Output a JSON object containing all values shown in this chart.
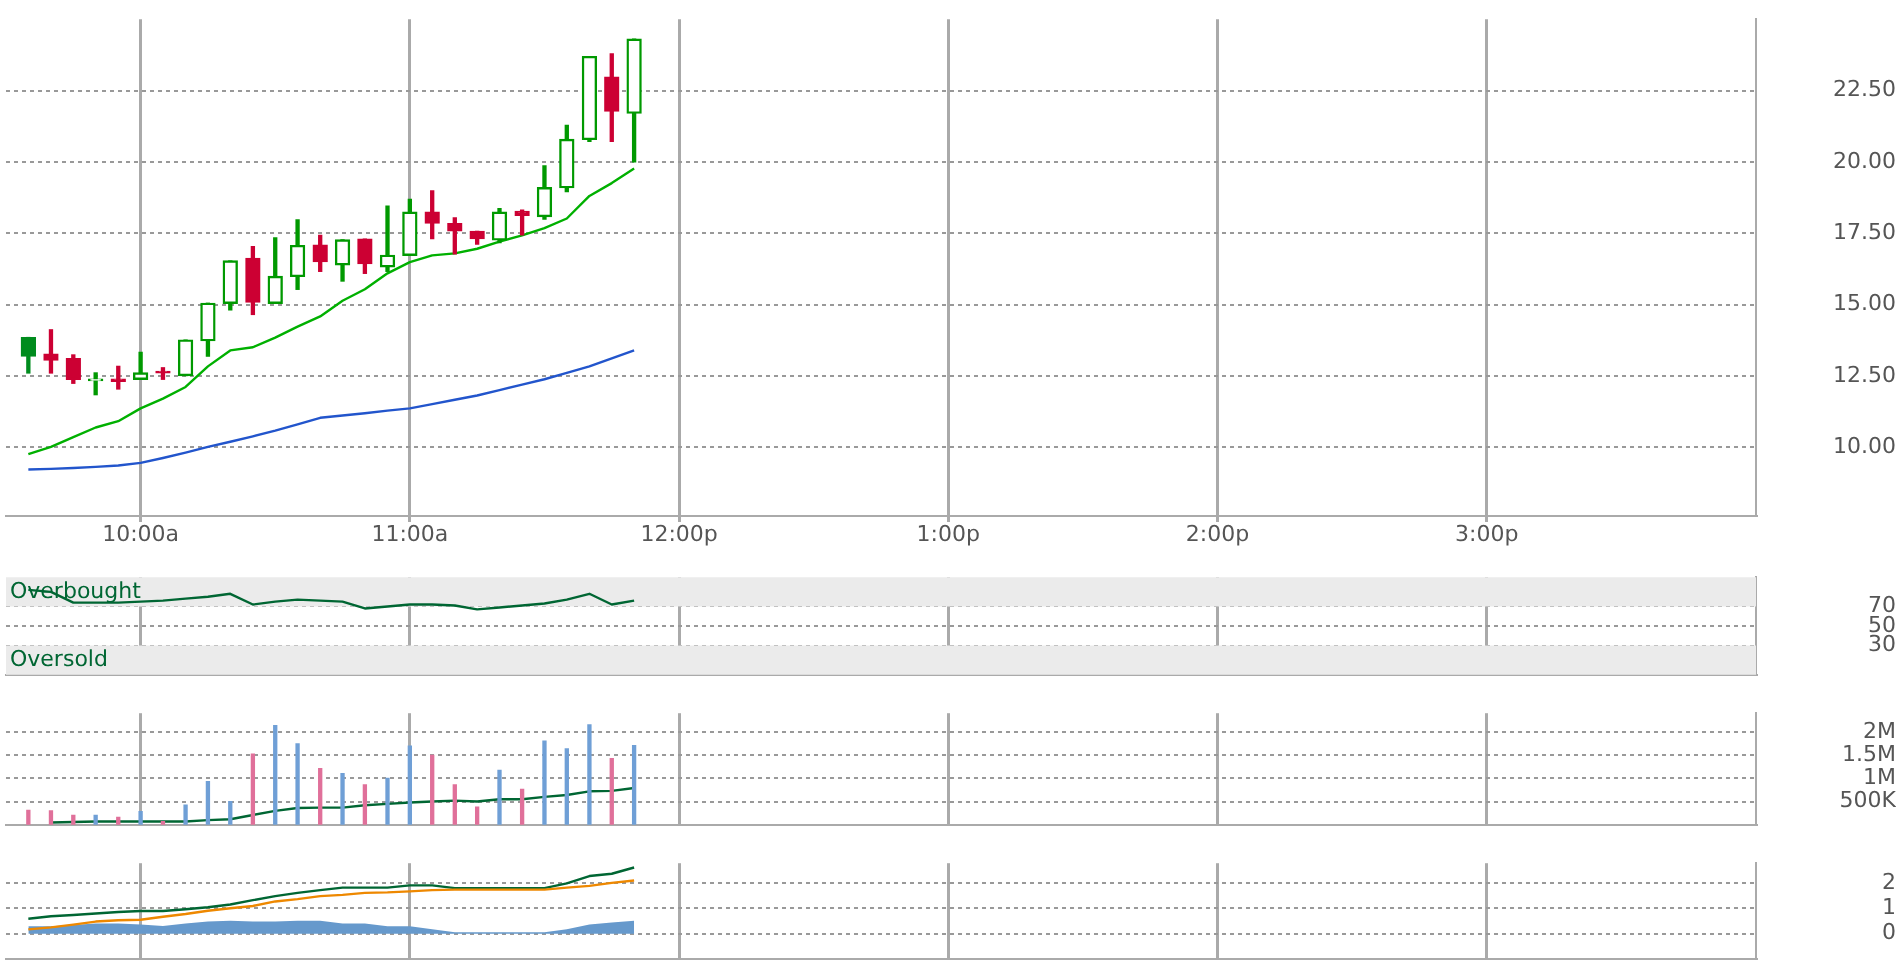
{
  "chart_data": [
    {
      "type": "candlestick",
      "x": [
        9.583,
        9.667,
        9.75,
        9.833,
        9.917,
        10,
        10.083,
        10.167,
        10.25,
        10.333,
        10.417,
        10.5,
        10.583,
        10.667,
        10.75,
        10.833,
        10.917,
        11,
        11.083,
        11.167,
        11.25,
        11.333,
        11.417,
        11.5,
        11.583,
        11.667,
        11.75,
        11.833
      ],
      "ohlc": [
        [
          13.85,
          13.85,
          12.61,
          13.2
        ],
        [
          13.27,
          14.12,
          12.61,
          13.06
        ],
        [
          13.11,
          13.24,
          12.25,
          12.39
        ],
        [
          12.34,
          12.61,
          11.85,
          12.39
        ],
        [
          12.39,
          12.84,
          12.05,
          12.32
        ],
        [
          12.39,
          13.33,
          12.39,
          12.61
        ],
        [
          12.66,
          12.79,
          12.39,
          12.61
        ],
        [
          12.52,
          13.76,
          12.52,
          13.76
        ],
        [
          13.74,
          15.05,
          13.2,
          15.05
        ],
        [
          15.05,
          16.53,
          14.82,
          16.53
        ],
        [
          16.62,
          17.03,
          14.66,
          15.09
        ],
        [
          15.05,
          17.34,
          15.05,
          15.99
        ],
        [
          15.99,
          17.97,
          15.54,
          17.07
        ],
        [
          17.09,
          17.43,
          16.17,
          16.51
        ],
        [
          16.4,
          17.27,
          15.83,
          17.27
        ],
        [
          17.3,
          17.3,
          16.1,
          16.44
        ],
        [
          16.33,
          18.45,
          16.17,
          16.73
        ],
        [
          16.73,
          18.69,
          16.73,
          18.24
        ],
        [
          18.24,
          18.99,
          17.32,
          17.86
        ],
        [
          17.84,
          18.04,
          16.78,
          17.59
        ],
        [
          17.57,
          17.57,
          17.12,
          17.32
        ],
        [
          17.27,
          18.36,
          17.18,
          18.24
        ],
        [
          18.27,
          18.31,
          17.45,
          18.13
        ],
        [
          18.09,
          19.86,
          18,
          19.1
        ],
        [
          19.1,
          21.28,
          18.96,
          20.79
        ],
        [
          20.79,
          23.69,
          20.72,
          23.69
        ],
        [
          22.97,
          23.78,
          20.72,
          21.78
        ],
        [
          21.71,
          24.3,
          20,
          24.3
        ]
      ],
      "colors": [
        "#008c1e",
        "#cc0033",
        "#cc0033",
        "#009900",
        "#cc0033",
        "#009900",
        "#cc0033",
        "#009900",
        "#009900",
        "#009900",
        "#cc0033",
        "#009900",
        "#009900",
        "#cc0033",
        "#009900",
        "#cc0033",
        "#009900",
        "#009900",
        "#cc0033",
        "#cc0033",
        "#cc0033",
        "#009900",
        "#cc0033",
        "#009900",
        "#009900",
        "#009900",
        "#cc0033",
        "#009900"
      ],
      "series": [
        {
          "type": "line",
          "color": "#00b000",
          "values": [
            9.77,
            10.02,
            10.36,
            10.7,
            10.92,
            11.37,
            11.71,
            12.12,
            12.84,
            13.4,
            13.51,
            13.85,
            14.23,
            14.59,
            15.14,
            15.54,
            16.1,
            16.49,
            16.73,
            16.8,
            16.96,
            17.21,
            17.43,
            17.68,
            18.02,
            18.81,
            19.26,
            19.77
          ]
        },
        {
          "type": "line",
          "color": "#2255cc",
          "values": [
            9.23,
            9.25,
            9.28,
            9.32,
            9.37,
            9.46,
            9.63,
            9.82,
            10.02,
            10.2,
            10.39,
            10.59,
            10.81,
            11.04,
            11.12,
            11.2,
            11.29,
            11.37,
            11.52,
            11.67,
            11.82,
            12.01,
            12.2,
            12.39,
            12.61,
            12.84,
            13.12,
            13.4
          ]
        }
      ],
      "xlim": [
        9.5,
        16
      ],
      "xticks": [
        {
          "value": 10,
          "label": "10:00a"
        },
        {
          "value": 11,
          "label": "11:00a"
        },
        {
          "value": 12,
          "label": "12:00p"
        },
        {
          "value": 13,
          "label": "1:00p"
        },
        {
          "value": 14,
          "label": "2:00p"
        },
        {
          "value": 15,
          "label": "3:00p"
        }
      ],
      "ylim": [
        7.6,
        25
      ],
      "yticks": [
        {
          "value": 10,
          "label": "10.00"
        },
        {
          "value": 12.5,
          "label": "12.50"
        },
        {
          "value": 15,
          "label": "15.00"
        },
        {
          "value": 17.5,
          "label": "17.50"
        },
        {
          "value": 20,
          "label": "20.00"
        },
        {
          "value": 22.5,
          "label": "22.50"
        }
      ],
      "grid": true
    },
    {
      "type": "line",
      "x": [
        9.583,
        9.667,
        9.75,
        9.833,
        9.917,
        10,
        10.083,
        10.167,
        10.25,
        10.333,
        10.417,
        10.5,
        10.583,
        10.667,
        10.75,
        10.833,
        10.917,
        11,
        11.083,
        11.167,
        11.25,
        11.333,
        11.417,
        11.5,
        11.583,
        11.667,
        11.75,
        11.833
      ],
      "values": [
        87,
        85,
        74,
        74,
        74,
        75,
        76,
        78,
        80,
        83,
        72,
        75,
        77,
        76,
        75,
        68,
        70,
        72,
        72,
        71,
        67,
        69,
        71,
        73,
        77,
        83,
        72,
        76
      ],
      "color": "#006633",
      "bands": [
        {
          "axis": "y",
          "from": 70,
          "to": 100,
          "label": "Overbought",
          "color": "#ebebeb"
        },
        {
          "axis": "y",
          "from": 0,
          "to": 30,
          "label": "Oversold",
          "color": "#ebebeb"
        }
      ],
      "xlim": [
        9.5,
        16
      ],
      "xticks": [
        10,
        11,
        12,
        13,
        14,
        15
      ],
      "ylim": [
        0,
        100
      ],
      "yticks": [
        30,
        50,
        70
      ],
      "tick_labels": "y",
      "grid": true
    },
    {
      "type": "bar",
      "x": [
        9.583,
        9.667,
        9.75,
        9.833,
        9.917,
        10,
        10.083,
        10.167,
        10.25,
        10.333,
        10.417,
        10.5,
        10.583,
        10.667,
        10.75,
        10.833,
        10.917,
        11,
        11.083,
        11.167,
        11.25,
        11.333,
        11.417,
        11.5,
        11.583,
        11.667,
        11.75,
        11.833
      ],
      "series": [
        {
          "type": "bar",
          "values": [
            310000,
            300000,
            200000,
            200000,
            160000,
            280000,
            70000,
            420000,
            930000,
            500000,
            1520000,
            2130000,
            1740000,
            1210000,
            1100000,
            860000,
            1000000,
            1690000,
            1490000,
            860000,
            380000,
            1170000,
            760000,
            1800000,
            1630000,
            2150000,
            1420000,
            1700000
          ],
          "colors": [
            "#e0709a",
            "#e0709a",
            "#e0709a",
            "#6f9fd6",
            "#e0709a",
            "#6f9fd6",
            "#e0709a",
            "#6f9fd6",
            "#6f9fd6",
            "#6f9fd6",
            "#e0709a",
            "#6f9fd6",
            "#6f9fd6",
            "#e0709a",
            "#6f9fd6",
            "#e0709a",
            "#6f9fd6",
            "#6f9fd6",
            "#e0709a",
            "#e0709a",
            "#e0709a",
            "#6f9fd6",
            "#e0709a",
            "#6f9fd6",
            "#6f9fd6",
            "#6f9fd6",
            "#e0709a",
            "#6f9fd6"
          ]
        },
        {
          "type": "line",
          "color": "#006633",
          "values": [
            null,
            50000,
            60000,
            70000,
            70000,
            70000,
            70000,
            70000,
            100000,
            120000,
            210000,
            300000,
            360000,
            370000,
            370000,
            420000,
            450000,
            480000,
            500000,
            520000,
            500000,
            550000,
            550000,
            600000,
            640000,
            720000,
            730000,
            790000
          ]
        }
      ],
      "xlim": [
        9.5,
        16
      ],
      "xticks": [
        10,
        11,
        12,
        13,
        14,
        15
      ],
      "ylim": [
        0,
        2400000
      ],
      "yticks": [
        {
          "value": 500000,
          "label": "500K"
        },
        {
          "value": 1000000,
          "label": "1M"
        },
        {
          "value": 1500000,
          "label": "1.5M"
        },
        {
          "value": 2000000,
          "label": "2M"
        }
      ],
      "tick_labels": "y",
      "grid": true
    },
    {
      "type": "line",
      "x": [
        9.583,
        9.667,
        9.75,
        9.833,
        9.917,
        10,
        10.083,
        10.167,
        10.25,
        10.333,
        10.417,
        10.5,
        10.583,
        10.667,
        10.75,
        10.833,
        10.917,
        11,
        11.083,
        11.167,
        11.25,
        11.333,
        11.417,
        11.5,
        11.583,
        11.667,
        11.75,
        11.833
      ],
      "series": [
        {
          "type": "area",
          "color": "#6699cc",
          "values": [
            0.29,
            0.29,
            0.34,
            0.4,
            0.4,
            0.36,
            0.3,
            0.4,
            0.48,
            0.51,
            0.48,
            0.48,
            0.51,
            0.51,
            0.4,
            0.4,
            0.29,
            0.29,
            0.17,
            0.06,
            0.06,
            0.06,
            0.06,
            0.06,
            0.17,
            0.36,
            0.44,
            0.51
          ]
        },
        {
          "type": "line",
          "color": "#ee8800",
          "values": [
            0.17,
            0.25,
            0.36,
            0.48,
            0.53,
            0.55,
            0.67,
            0.78,
            0.91,
            1.01,
            1.1,
            1.28,
            1.37,
            1.49,
            1.54,
            1.62,
            1.64,
            1.68,
            1.73,
            1.75,
            1.75,
            1.75,
            1.75,
            1.75,
            1.83,
            1.9,
            2.02,
            2.11
          ]
        },
        {
          "type": "line",
          "color": "#006633",
          "values": [
            0.59,
            0.69,
            0.74,
            0.8,
            0.86,
            0.9,
            0.9,
            0.97,
            1.05,
            1.16,
            1.33,
            1.49,
            1.62,
            1.73,
            1.83,
            1.83,
            1.83,
            1.92,
            1.92,
            1.81,
            1.81,
            1.81,
            1.81,
            1.81,
            2,
            2.29,
            2.38,
            2.63
          ]
        }
      ],
      "xlim": [
        9.5,
        16
      ],
      "xticks": [
        10,
        11,
        12,
        13,
        14,
        15
      ],
      "ylim": [
        -1,
        2.8
      ],
      "yticks": [
        0,
        1,
        2
      ],
      "tick_labels": "y",
      "grid": true
    }
  ]
}
